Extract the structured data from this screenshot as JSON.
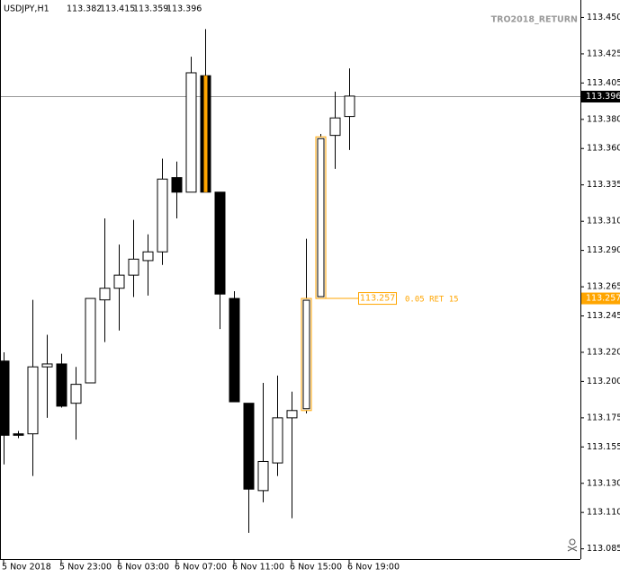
{
  "chart_data": {
    "type": "candlestick",
    "symbol": "USDJPY,H1",
    "indicator": "TRO2018_RETURN",
    "categories": [
      "5 Nov 2018",
      null,
      null,
      null,
      "5 Nov 23:00",
      null,
      null,
      null,
      "6 Nov 03:00",
      null,
      null,
      null,
      "6 Nov 07:00",
      null,
      null,
      null,
      "6 Nov 11:00",
      null,
      null,
      null,
      "6 Nov 15:00",
      null,
      null,
      null,
      "6 Nov 19:00"
    ],
    "open": [
      113.214,
      113.164,
      113.164,
      113.21,
      113.212,
      113.185,
      113.199,
      113.256,
      113.264,
      113.273,
      113.283,
      113.289,
      113.34,
      113.33,
      113.41,
      113.33,
      113.257,
      113.185,
      113.125,
      113.144,
      113.175,
      113.18,
      113.257,
      113.369,
      113.382
    ],
    "high": [
      113.22,
      113.166,
      113.256,
      113.232,
      113.219,
      113.21,
      113.257,
      113.312,
      113.294,
      113.311,
      113.301,
      113.353,
      113.351,
      113.423,
      113.442,
      113.33,
      113.262,
      113.185,
      113.199,
      113.204,
      113.193,
      113.298,
      113.37,
      113.399,
      113.415
    ],
    "low": [
      113.143,
      113.161,
      113.135,
      113.175,
      113.182,
      113.16,
      113.199,
      113.227,
      113.235,
      113.258,
      113.259,
      113.28,
      113.312,
      113.33,
      113.33,
      113.236,
      113.186,
      113.096,
      113.117,
      113.135,
      113.106,
      113.178,
      113.257,
      113.346,
      113.359
    ],
    "close": [
      113.163,
      113.163,
      113.21,
      113.212,
      113.183,
      113.198,
      113.257,
      113.264,
      113.273,
      113.284,
      113.289,
      113.339,
      113.33,
      113.412,
      113.33,
      113.26,
      113.186,
      113.126,
      113.145,
      113.175,
      113.18,
      113.257,
      113.368,
      113.381,
      113.396
    ],
    "up_color": "#ffffff",
    "down_color": "#000000",
    "highlight_color": "#ffa500",
    "highlighted": [
      14,
      21,
      22
    ],
    "level": {
      "value": 113.257,
      "text": "0.05 RET 15"
    },
    "ylim": [
      113.078,
      113.462
    ],
    "yticks": [
      {
        "value": 113.45,
        "label": "113.450"
      },
      {
        "value": 113.425,
        "label": "113.425"
      },
      {
        "value": 113.405,
        "label": "113.405"
      },
      {
        "value": 113.38,
        "label": "113.380"
      },
      {
        "value": 113.36,
        "label": "113.360"
      },
      {
        "value": 113.335,
        "label": "113.335"
      },
      {
        "value": 113.31,
        "label": "113.310"
      },
      {
        "value": 113.29,
        "label": "113.290"
      },
      {
        "value": 113.265,
        "label": "113.265"
      },
      {
        "value": 113.245,
        "label": "113.245"
      },
      {
        "value": 113.22,
        "label": "113.220"
      },
      {
        "value": 113.2,
        "label": "113.200"
      },
      {
        "value": 113.175,
        "label": "113.175"
      },
      {
        "value": 113.155,
        "label": "113.155"
      },
      {
        "value": 113.13,
        "label": "113.130"
      },
      {
        "value": 113.11,
        "label": "113.110"
      },
      {
        "value": 113.085,
        "label": "113.085"
      }
    ],
    "grid": false
  }
}
